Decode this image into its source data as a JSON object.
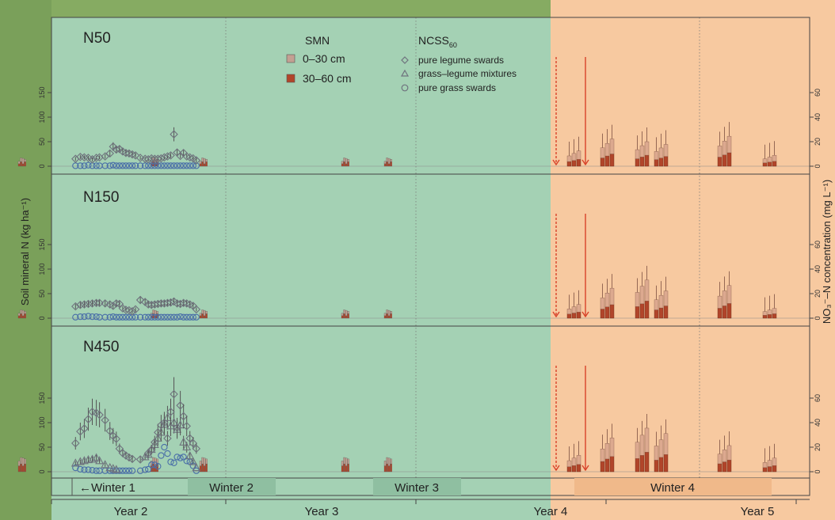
{
  "chart_data": {
    "type": "scatter",
    "ylabel_left": "Soil mineral N (kg ha⁻¹)",
    "ylabel_right": "NO₃⁻–N concentration (mg L⁻¹)",
    "yticks_left": [
      "0",
      "50",
      "100",
      "150"
    ],
    "yticks_right": [
      "0",
      "20",
      "40",
      "60"
    ],
    "ylim_left": [
      0,
      165
    ],
    "ylim_right": [
      0,
      66
    ],
    "panels": [
      {
        "label": "N50",
        "legume": [
          [
            30,
            15
          ],
          [
            36,
            19
          ],
          [
            41,
            18
          ],
          [
            46,
            17
          ],
          [
            51,
            14
          ],
          [
            56,
            17
          ],
          [
            60,
            18
          ],
          [
            67,
            20
          ],
          [
            73,
            26
          ],
          [
            77,
            40
          ],
          [
            81,
            34
          ],
          [
            85,
            35
          ],
          [
            89,
            30
          ],
          [
            93,
            27
          ],
          [
            97,
            26
          ],
          [
            101,
            24
          ],
          [
            105,
            22
          ],
          [
            111,
            17
          ],
          [
            117,
            15
          ],
          [
            121,
            14
          ],
          [
            125,
            16
          ],
          [
            129,
            15
          ],
          [
            133,
            15
          ],
          [
            137,
            16
          ],
          [
            141,
            18
          ],
          [
            145,
            20
          ],
          [
            149,
            22
          ],
          [
            153,
            65
          ],
          [
            157,
            28
          ],
          [
            161,
            21
          ],
          [
            165,
            27
          ],
          [
            169,
            20
          ],
          [
            173,
            18
          ],
          [
            177,
            16
          ],
          [
            181,
            12
          ]
        ],
        "grass": [
          [
            30,
            1
          ],
          [
            36,
            1
          ],
          [
            41,
            1
          ],
          [
            46,
            2
          ],
          [
            51,
            1
          ],
          [
            56,
            1
          ],
          [
            60,
            1
          ],
          [
            67,
            1
          ],
          [
            73,
            1
          ],
          [
            77,
            2
          ],
          [
            81,
            1
          ],
          [
            85,
            1
          ],
          [
            89,
            1
          ],
          [
            93,
            1
          ],
          [
            97,
            1
          ],
          [
            101,
            1
          ],
          [
            105,
            1
          ],
          [
            111,
            1
          ],
          [
            117,
            1
          ],
          [
            121,
            1
          ],
          [
            125,
            1
          ],
          [
            129,
            1
          ],
          [
            133,
            1
          ],
          [
            137,
            1
          ],
          [
            141,
            1
          ],
          [
            145,
            1
          ],
          [
            149,
            1
          ],
          [
            153,
            1
          ],
          [
            157,
            1
          ],
          [
            161,
            1
          ],
          [
            165,
            1
          ],
          [
            169,
            1
          ],
          [
            173,
            1
          ],
          [
            177,
            1
          ],
          [
            181,
            1
          ]
        ],
        "mixture": []
      },
      {
        "label": "N150",
        "legume": [
          [
            30,
            24
          ],
          [
            36,
            27
          ],
          [
            41,
            28
          ],
          [
            46,
            29
          ],
          [
            51,
            30
          ],
          [
            56,
            31
          ],
          [
            60,
            31
          ],
          [
            67,
            30
          ],
          [
            73,
            28
          ],
          [
            77,
            25
          ],
          [
            81,
            30
          ],
          [
            85,
            29
          ],
          [
            89,
            20
          ],
          [
            93,
            17
          ],
          [
            97,
            16
          ],
          [
            101,
            14
          ],
          [
            105,
            18
          ],
          [
            111,
            37
          ],
          [
            117,
            33
          ],
          [
            121,
            28
          ],
          [
            125,
            27
          ],
          [
            129,
            28
          ],
          [
            133,
            29
          ],
          [
            137,
            30
          ],
          [
            141,
            30
          ],
          [
            145,
            31
          ],
          [
            149,
            32
          ],
          [
            153,
            34
          ],
          [
            157,
            30
          ],
          [
            161,
            29
          ],
          [
            165,
            31
          ],
          [
            169,
            30
          ],
          [
            173,
            28
          ],
          [
            177,
            25
          ],
          [
            181,
            18
          ]
        ],
        "grass": [
          [
            30,
            2
          ],
          [
            36,
            3
          ],
          [
            41,
            3
          ],
          [
            46,
            4
          ],
          [
            51,
            3
          ],
          [
            56,
            3
          ],
          [
            60,
            2
          ],
          [
            67,
            2
          ],
          [
            73,
            2
          ],
          [
            77,
            3
          ],
          [
            81,
            2
          ],
          [
            85,
            2
          ],
          [
            89,
            2
          ],
          [
            93,
            2
          ],
          [
            97,
            2
          ],
          [
            101,
            2
          ],
          [
            105,
            2
          ],
          [
            111,
            2
          ],
          [
            117,
            2
          ],
          [
            121,
            2
          ],
          [
            125,
            2
          ],
          [
            129,
            2
          ],
          [
            133,
            2
          ],
          [
            137,
            2
          ],
          [
            141,
            2
          ],
          [
            145,
            2
          ],
          [
            149,
            2
          ],
          [
            153,
            2
          ],
          [
            157,
            2
          ],
          [
            161,
            3
          ],
          [
            165,
            2
          ],
          [
            169,
            2
          ],
          [
            173,
            2
          ],
          [
            177,
            2
          ],
          [
            181,
            2
          ]
        ],
        "mixture": []
      },
      {
        "label": "N450",
        "legume": [
          [
            30,
            58
          ],
          [
            36,
            82
          ],
          [
            41,
            88
          ],
          [
            46,
            107
          ],
          [
            51,
            122
          ],
          [
            56,
            120
          ],
          [
            60,
            116
          ],
          [
            67,
            105
          ],
          [
            73,
            83
          ],
          [
            77,
            73
          ],
          [
            81,
            67
          ],
          [
            85,
            47
          ],
          [
            89,
            38
          ],
          [
            93,
            33
          ],
          [
            97,
            29
          ],
          [
            101,
            26
          ],
          [
            111,
            25
          ],
          [
            121,
            38
          ],
          [
            125,
            45
          ],
          [
            129,
            60
          ],
          [
            133,
            80
          ],
          [
            137,
            95
          ],
          [
            141,
            100
          ],
          [
            145,
            68
          ],
          [
            149,
            122
          ],
          [
            153,
            158
          ],
          [
            157,
            90
          ],
          [
            161,
            135
          ],
          [
            165,
            113
          ],
          [
            169,
            93
          ],
          [
            173,
            68
          ],
          [
            177,
            58
          ],
          [
            181,
            47
          ]
        ],
        "mixture": [
          [
            30,
            17
          ],
          [
            36,
            20
          ],
          [
            41,
            22
          ],
          [
            46,
            24
          ],
          [
            51,
            25
          ],
          [
            56,
            28
          ],
          [
            60,
            22
          ],
          [
            67,
            14
          ],
          [
            73,
            8
          ],
          [
            77,
            6
          ],
          [
            81,
            4
          ],
          [
            117,
            30
          ],
          [
            121,
            35
          ],
          [
            125,
            45
          ],
          [
            129,
            55
          ],
          [
            133,
            68
          ],
          [
            137,
            80
          ],
          [
            141,
            96
          ],
          [
            145,
            110
          ],
          [
            149,
            93
          ],
          [
            153,
            100
          ],
          [
            157,
            86
          ],
          [
            161,
            95
          ],
          [
            165,
            60
          ],
          [
            169,
            50
          ],
          [
            173,
            32
          ],
          [
            177,
            20
          ],
          [
            181,
            8
          ]
        ],
        "grass": [
          [
            30,
            8
          ],
          [
            36,
            5
          ],
          [
            41,
            4
          ],
          [
            46,
            4
          ],
          [
            51,
            3
          ],
          [
            56,
            2
          ],
          [
            60,
            2
          ],
          [
            67,
            2
          ],
          [
            73,
            2
          ],
          [
            77,
            2
          ],
          [
            81,
            2
          ],
          [
            85,
            2
          ],
          [
            89,
            2
          ],
          [
            93,
            2
          ],
          [
            97,
            2
          ],
          [
            101,
            2
          ],
          [
            111,
            2
          ],
          [
            117,
            4
          ],
          [
            121,
            5
          ],
          [
            125,
            14
          ],
          [
            129,
            14
          ],
          [
            133,
            11
          ],
          [
            137,
            33
          ],
          [
            141,
            50
          ],
          [
            145,
            37
          ],
          [
            149,
            20
          ],
          [
            153,
            18
          ],
          [
            157,
            30
          ],
          [
            161,
            28
          ],
          [
            165,
            30
          ],
          [
            169,
            22
          ],
          [
            173,
            20
          ],
          [
            177,
            12
          ],
          [
            181,
            2
          ]
        ]
      }
    ],
    "legend": {
      "smn_title": "SMN",
      "smn_items": [
        "0–30 cm",
        "30–60 cm"
      ],
      "ncss_title": "NCSS",
      "ncss_sub": "60",
      "ncss_items": [
        "pure legume swards",
        "grass–legume mixtures",
        "pure grass swards"
      ]
    },
    "winter_labels": [
      "←Winter 1",
      "Winter 2",
      "Winter 3",
      "Winter 4"
    ],
    "year_labels": [
      "Year 2",
      "Year 3",
      "Year 4",
      "Year 5"
    ],
    "colors": {
      "green_bg": "#a4d1b4",
      "orange_bg": "#f7c9a0",
      "smn_0_30": "#c3a092",
      "smn_30_60": "#b1452a",
      "legume_marker": "#6f737e",
      "grass_marker": "#4a6fa8",
      "winter_band": "#8fbfa1",
      "winter4_band": "#f0b98a"
    }
  }
}
